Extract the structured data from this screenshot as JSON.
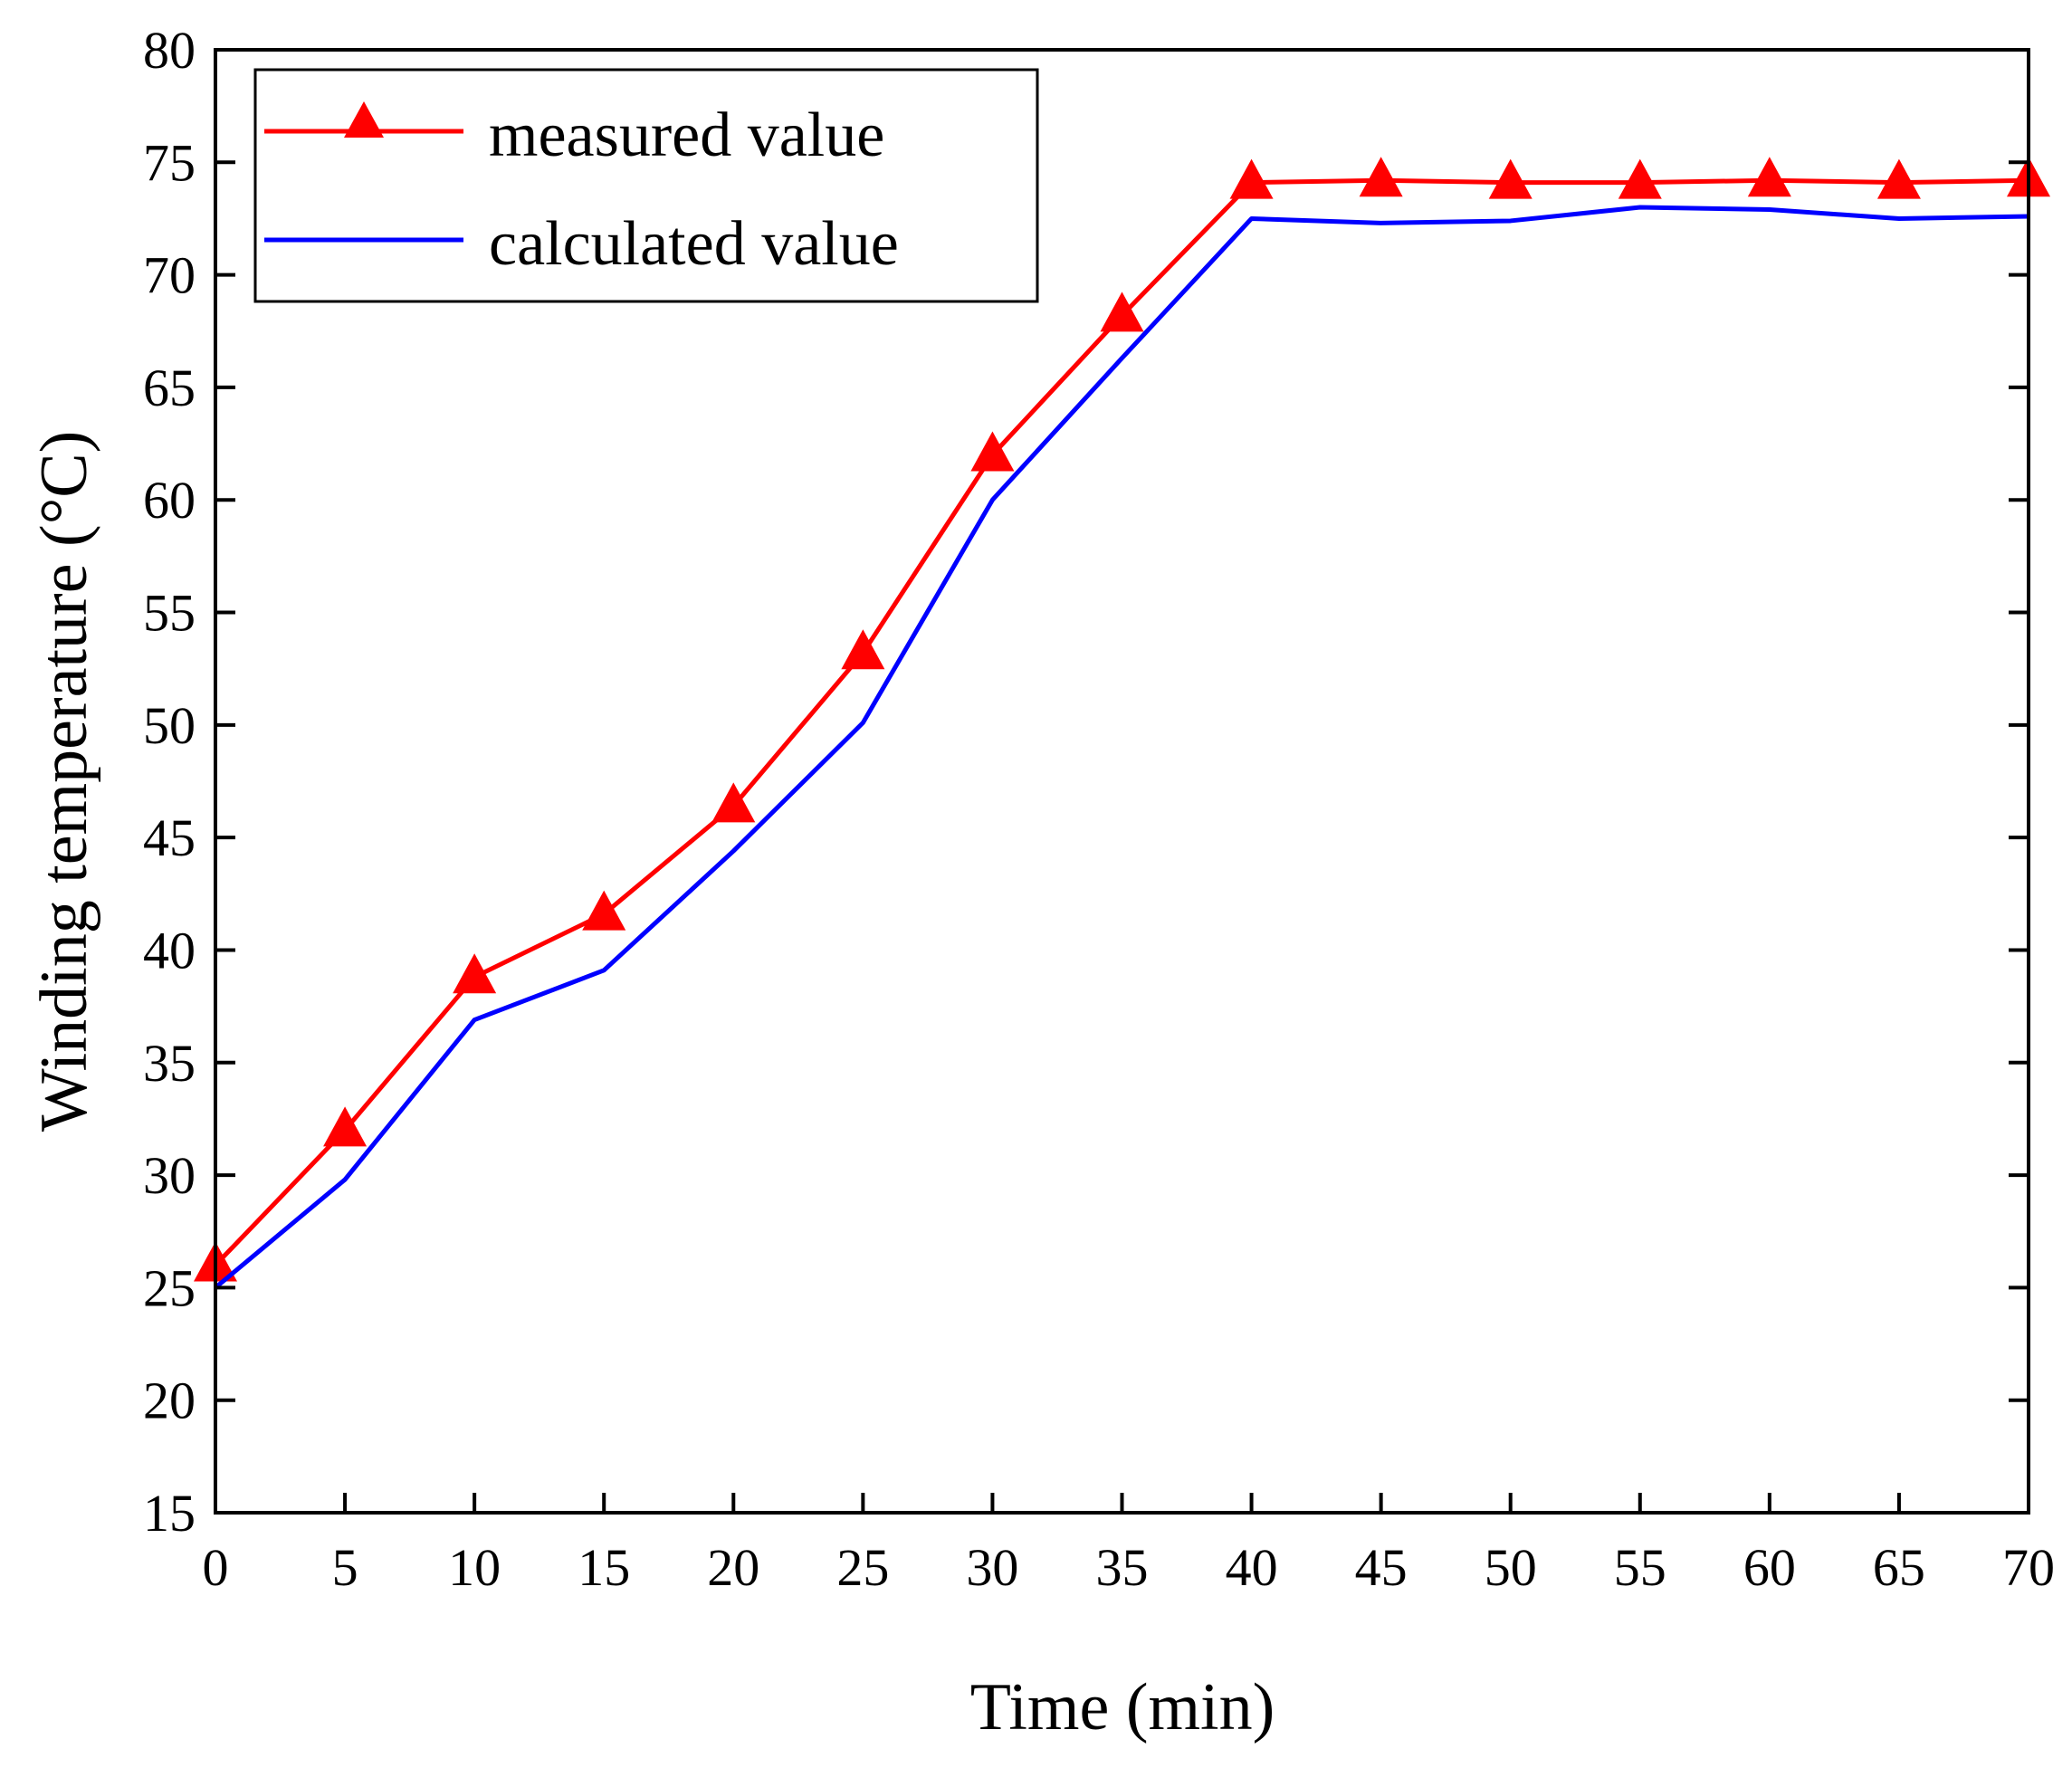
{
  "chart_data": {
    "type": "line",
    "title": "",
    "xlabel": "Time (min)",
    "ylabel": "Winding temperature (°C)",
    "xlim": [
      0,
      70
    ],
    "ylim": [
      15,
      80
    ],
    "xticks": [
      0,
      5,
      10,
      15,
      20,
      25,
      30,
      35,
      40,
      45,
      50,
      55,
      60,
      65,
      70
    ],
    "yticks": [
      15,
      20,
      25,
      30,
      35,
      40,
      45,
      50,
      55,
      60,
      65,
      70,
      75,
      80
    ],
    "grid": false,
    "legend_position": "top-left",
    "x": [
      0,
      5,
      10,
      15,
      20,
      25,
      30,
      35,
      40,
      45,
      50,
      55,
      60,
      65,
      70
    ],
    "series": [
      {
        "name": "measured value",
        "color": "#ff0000",
        "marker": "triangle",
        "values": [
          26.0,
          32.0,
          38.8,
          41.6,
          46.4,
          53.2,
          62.0,
          68.2,
          74.1,
          74.2,
          74.1,
          74.1,
          74.2,
          74.1,
          74.2
        ]
      },
      {
        "name": "calculated value",
        "color": "#0000ff",
        "marker": "none",
        "values": [
          25.0,
          29.8,
          36.9,
          39.1,
          44.4,
          50.1,
          60.0,
          66.3,
          72.5,
          72.3,
          72.4,
          73.0,
          72.9,
          72.5,
          72.6
        ]
      }
    ]
  }
}
